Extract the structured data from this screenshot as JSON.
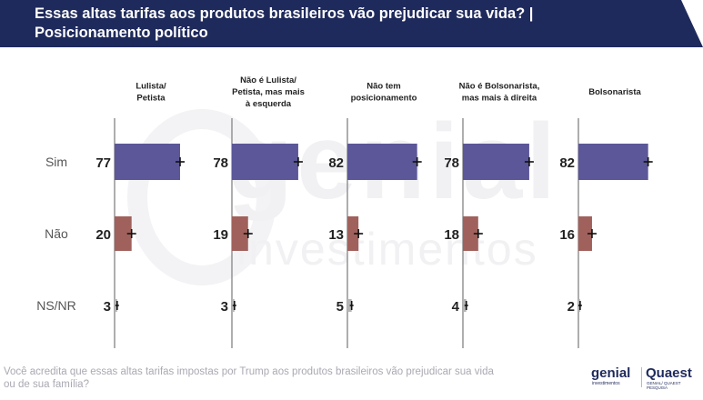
{
  "header": {
    "title_line1": "Essas altas tarifas aos produtos brasileiros vão prejudicar sua vida? |",
    "title_line2": "Posicionamento político"
  },
  "watermark": {
    "line1": "genial",
    "line2": "investimentos"
  },
  "footer": {
    "question": "Você acredita que essas altas tarifas impostas por Trump aos produtos brasileiros vão prejudicar sua vida ou de sua família?",
    "logo_genial": "genial",
    "logo_genial_sub": "investimentos",
    "logo_quaest": "Quaest",
    "logo_quaest_sub": "GENIAL/ QUAEST PESQUISA"
  },
  "colors": {
    "Sim": "#5b5798",
    "Não": "#a0615c",
    "NS/NR": "#b5b5b5",
    "header": "#1f2a5c"
  },
  "chart_data": {
    "type": "bar",
    "orientation": "horizontal",
    "rows": [
      "Sim",
      "Não",
      "NS/NR"
    ],
    "groups": [
      {
        "label": "Lulista/\nPetista",
        "values": [
          77,
          20,
          3
        ]
      },
      {
        "label": "Não é Lulista/\nPetista, mas mais\nà esquerda",
        "values": [
          78,
          19,
          3
        ]
      },
      {
        "label": "Não tem\nposicionamento",
        "values": [
          82,
          13,
          5
        ]
      },
      {
        "label": "Não é Bolsonarista,\nmas mais à direita",
        "values": [
          78,
          18,
          4
        ]
      },
      {
        "label": "Bolsonarista",
        "values": [
          82,
          16,
          2
        ]
      }
    ],
    "error_bars": true,
    "xlim": [
      0,
      100
    ]
  }
}
